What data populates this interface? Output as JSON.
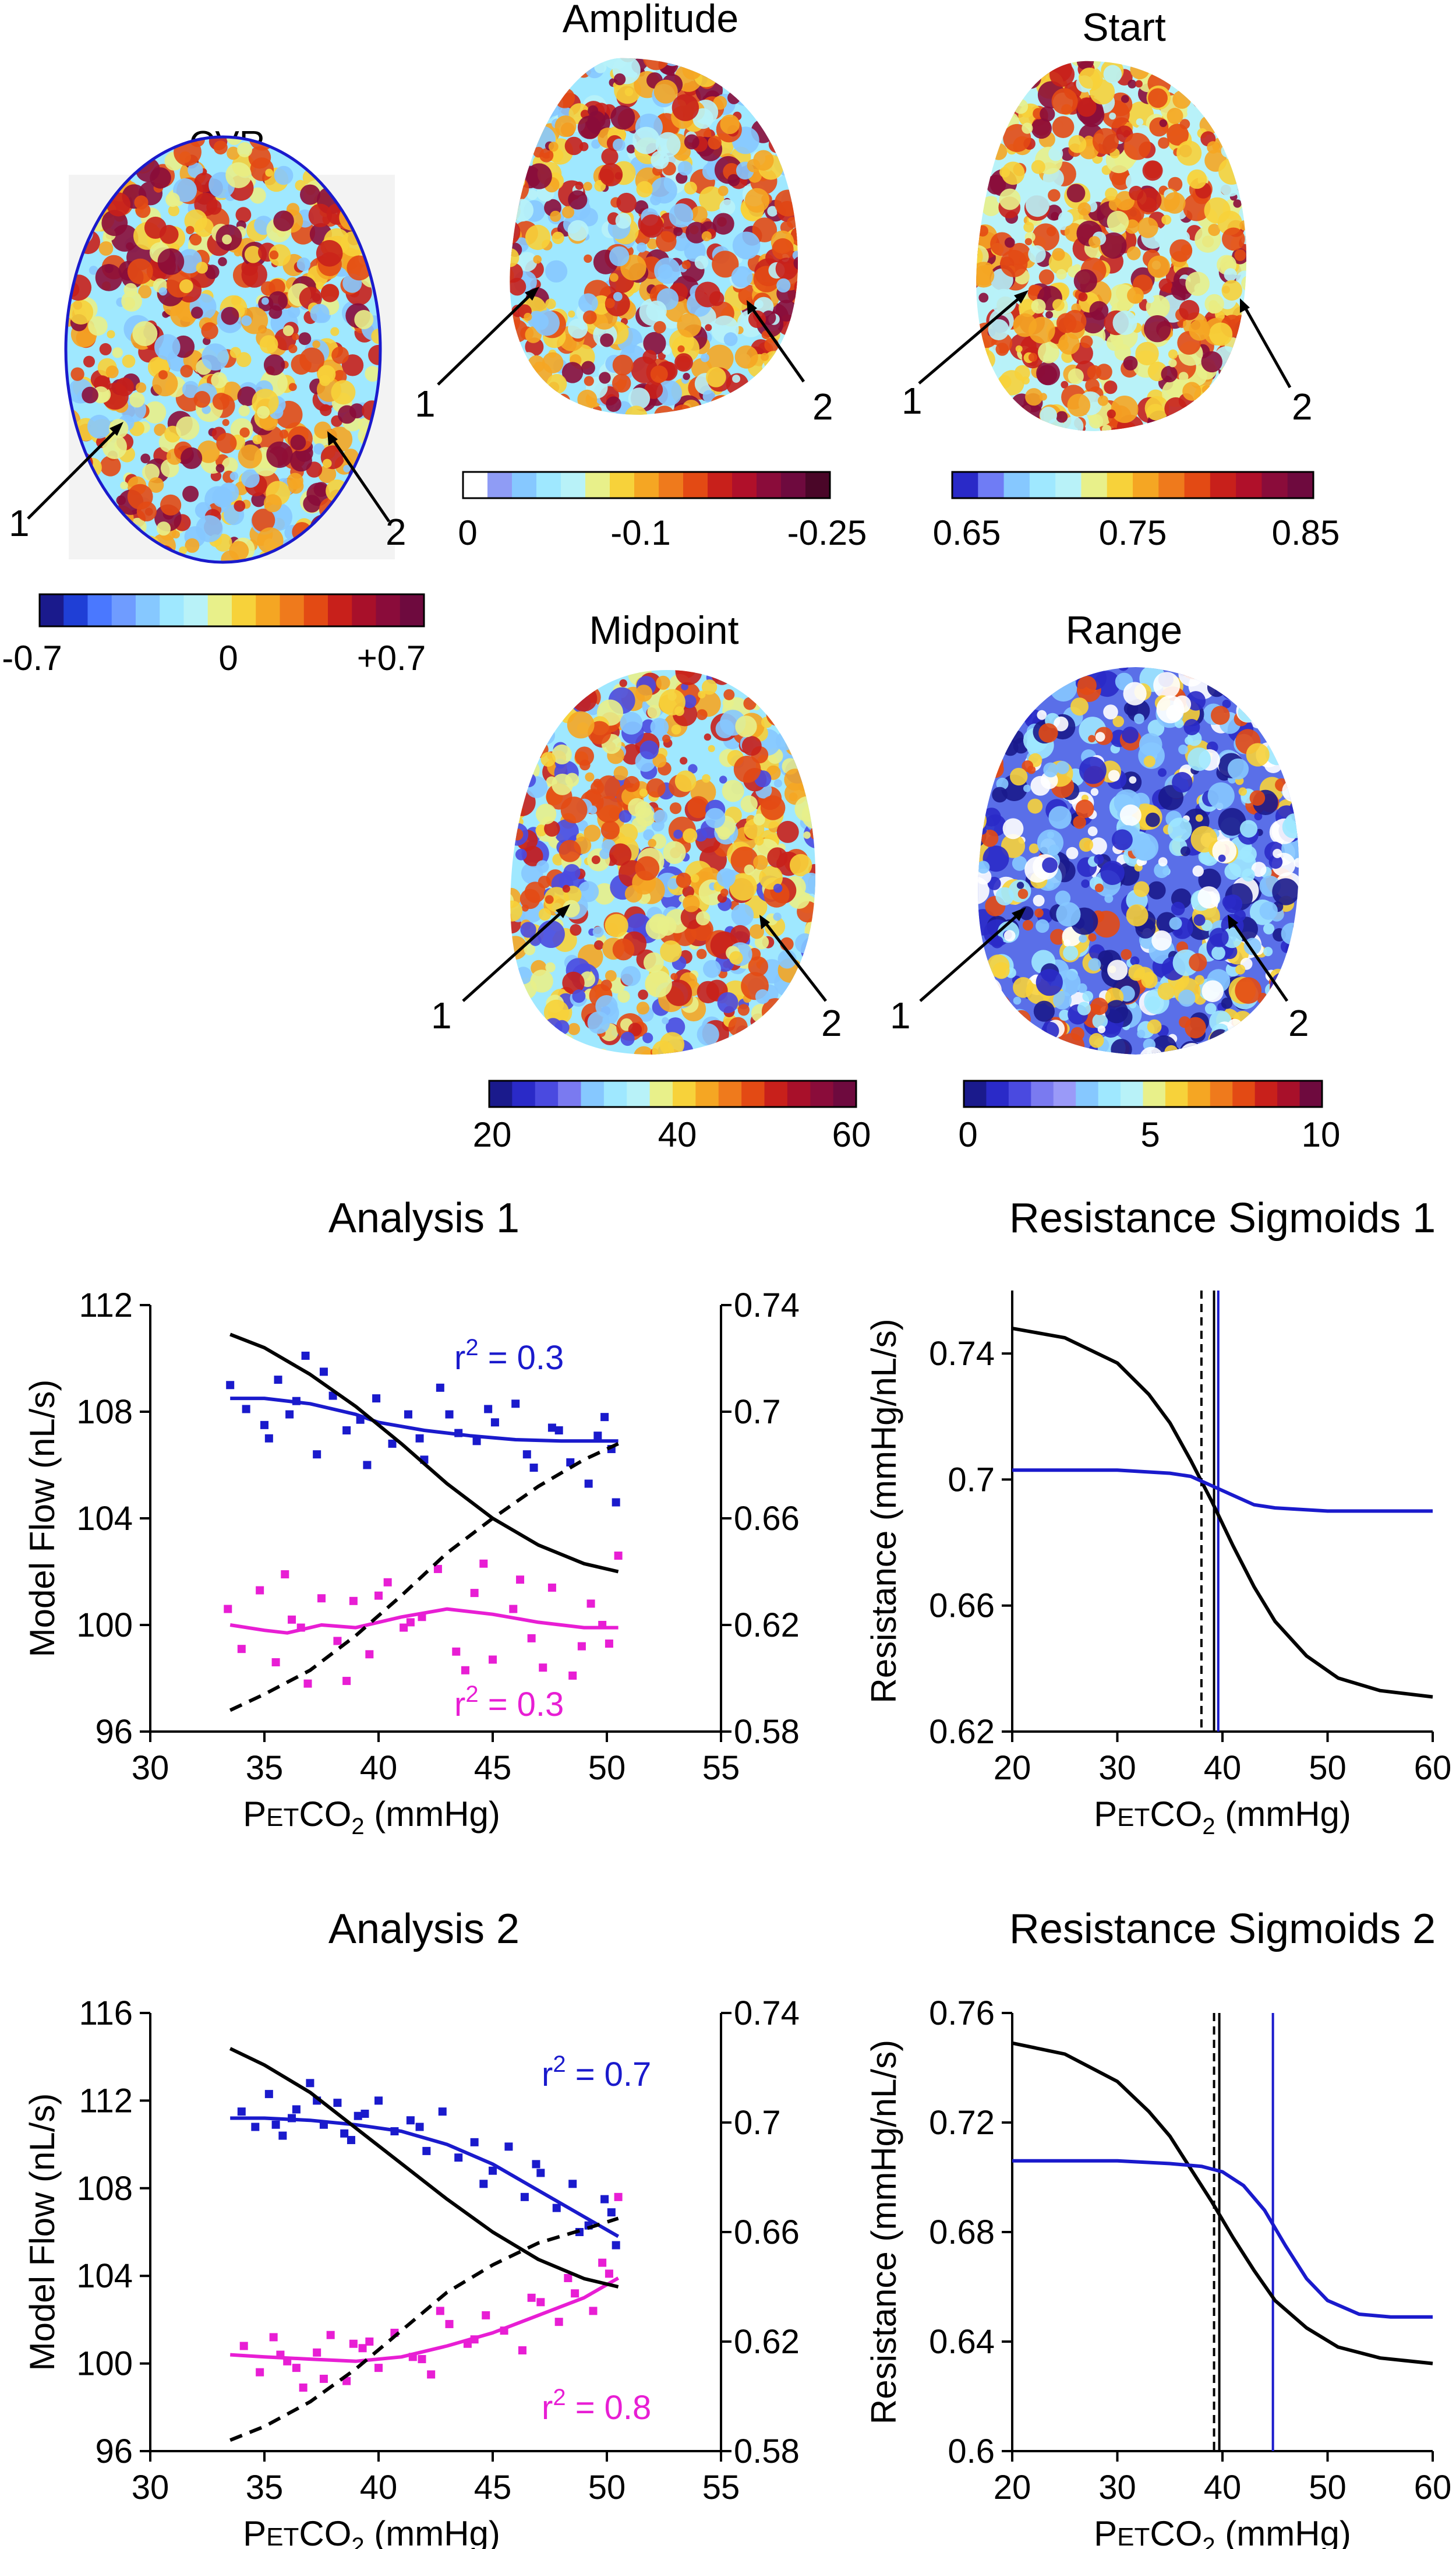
{
  "brain_maps": [
    {
      "id": "cvr",
      "title": "CVR",
      "pointers": [
        "1",
        "2"
      ],
      "colorbar": {
        "ticks": [
          "-0.7",
          "0",
          "+0.7"
        ],
        "colors": [
          "#1a1a8c",
          "#1f3fd6",
          "#4a78ff",
          "#6f9cff",
          "#86c8ff",
          "#9fe8ff",
          "#b8f2f8",
          "#e8f08a",
          "#f7d23a",
          "#f5a623",
          "#ef7a1c",
          "#e34a14",
          "#c8201b",
          "#a8102a",
          "#8a0c3a",
          "#6e0a3e"
        ]
      }
    },
    {
      "id": "amplitude",
      "title": "Amplitude",
      "pointers": [
        "1",
        "2"
      ],
      "colorbar": {
        "ticks": [
          "0",
          "-0.1",
          "-0.25"
        ],
        "colors": [
          "#ffffff",
          "#8f9cf5",
          "#86c8ff",
          "#9fe8ff",
          "#b8f2f8",
          "#e8f08a",
          "#f7d23a",
          "#f5a623",
          "#ef7a1c",
          "#e34a14",
          "#c8201b",
          "#b0102a",
          "#8a0c3a",
          "#6e0a3e",
          "#4a0628"
        ]
      }
    },
    {
      "id": "start",
      "title": "Start",
      "pointers": [
        "1",
        "2"
      ],
      "colorbar": {
        "ticks": [
          "0.65",
          "0.75",
          "0.85"
        ],
        "colors": [
          "#2a2ac8",
          "#6f7cf5",
          "#86c8ff",
          "#9fe8ff",
          "#b8f2f8",
          "#e8f08a",
          "#f7d23a",
          "#f5a623",
          "#ef7a1c",
          "#e34a14",
          "#c8201b",
          "#b0102a",
          "#8a0c3a",
          "#6e0a3e"
        ]
      }
    },
    {
      "id": "midpoint",
      "title": "Midpoint",
      "pointers": [
        "1",
        "2"
      ],
      "colorbar": {
        "ticks": [
          "20",
          "40",
          "60"
        ],
        "colors": [
          "#1a1a8c",
          "#2a2ac8",
          "#4a4ae0",
          "#7a7af0",
          "#86c8ff",
          "#9fe8ff",
          "#b8f2f8",
          "#e8f08a",
          "#f7d23a",
          "#f5a623",
          "#ef7a1c",
          "#e34a14",
          "#c8201b",
          "#a8102a",
          "#8a0c3a",
          "#6e0a3e"
        ]
      }
    },
    {
      "id": "range",
      "title": "Range",
      "pointers": [
        "1",
        "2"
      ],
      "colorbar": {
        "ticks": [
          "0",
          "5",
          "10"
        ],
        "colors": [
          "#1a1a8c",
          "#2a2ac8",
          "#4a4ae0",
          "#7a7af0",
          "#9a9af8",
          "#86c8ff",
          "#9fe8ff",
          "#b8f2f8",
          "#e8f08a",
          "#f7d23a",
          "#f5a623",
          "#ef7a1c",
          "#e34a14",
          "#c8201b",
          "#a8102a",
          "#6e0a3e"
        ]
      }
    }
  ],
  "labels": {
    "xlabel_prefix": "P",
    "xlabel_sub": "ET",
    "xlabel_mid": "CO",
    "xlabel_sub2": "2",
    "xlabel_suffix": " (mmHg)",
    "ylabel_flow": "Model Flow (nL/s)",
    "ylabel_res": "Resistance (mmHg/nL/s)",
    "r2_prefix": "r",
    "r2_sup": "2"
  },
  "chart_data": [
    {
      "type": "scatter",
      "title": "Analysis 1",
      "xlim": [
        30,
        55
      ],
      "xticks": [
        "30",
        "35",
        "40",
        "45",
        "50",
        "55"
      ],
      "ylim": [
        96,
        112
      ],
      "yticks": [
        "96",
        "100",
        "104",
        "108",
        "112"
      ],
      "y2lim": [
        0.58,
        0.74
      ],
      "y2ticks": [
        "0.58",
        "0.62",
        "0.66",
        "0.7",
        "0.74"
      ],
      "series": [
        {
          "name": "blue scatter",
          "color": "#1a1acc",
          "x": [
            33.5,
            34.2,
            35.0,
            35.6,
            36.1,
            36.8,
            37.3,
            38.0,
            38.6,
            39.2,
            39.9,
            40.6,
            41.3,
            42.0,
            42.7,
            43.5,
            44.3,
            45.1,
            46.0,
            46.8,
            47.6,
            48.4,
            49.2,
            49.9,
            50.4,
            35.2,
            37.6,
            41.8,
            44.8,
            47.9,
            50.2,
            36.4,
            39.5,
            43.1,
            46.5,
            49.6
          ],
          "y": [
            109.0,
            108.1,
            107.5,
            109.2,
            107.9,
            110.1,
            106.4,
            108.6,
            107.3,
            107.7,
            108.5,
            106.8,
            107.9,
            106.2,
            108.9,
            107.2,
            106.9,
            107.6,
            108.3,
            105.9,
            107.4,
            106.1,
            105.3,
            107.8,
            104.6,
            107.0,
            109.5,
            107.0,
            108.1,
            107.3,
            106.6,
            108.4,
            106.0,
            107.9,
            106.4,
            107.1
          ]
        },
        {
          "name": "magenta scatter",
          "color": "#e81ed4",
          "x": [
            33.4,
            34.0,
            34.8,
            35.5,
            36.2,
            36.9,
            37.5,
            38.2,
            38.9,
            39.6,
            40.4,
            41.1,
            41.9,
            42.6,
            43.4,
            44.2,
            45.0,
            45.9,
            46.7,
            47.6,
            48.5,
            49.3,
            50.1,
            50.5,
            35.9,
            38.6,
            41.4,
            44.6,
            47.2,
            49.8,
            36.6,
            40.0,
            43.8,
            46.2,
            48.9
          ],
          "y": [
            100.6,
            99.1,
            101.3,
            98.6,
            100.2,
            97.8,
            101.0,
            99.4,
            100.9,
            98.9,
            101.6,
            99.9,
            100.3,
            102.1,
            99.0,
            101.2,
            98.7,
            100.6,
            99.5,
            101.4,
            98.1,
            100.8,
            99.3,
            102.6,
            101.9,
            97.9,
            100.1,
            102.3,
            98.4,
            100.0,
            99.9,
            101.1,
            98.3,
            101.7,
            99.2
          ]
        },
        {
          "name": "blue fit",
          "color": "#1a1acc",
          "r2": "0.3",
          "x": [
            33.5,
            35,
            37,
            39,
            40,
            42,
            44,
            46,
            48,
            50.5
          ],
          "y": [
            108.5,
            108.5,
            108.3,
            107.9,
            107.6,
            107.3,
            107.1,
            106.95,
            106.9,
            106.9
          ]
        },
        {
          "name": "magenta fit",
          "color": "#e81ed4",
          "r2": "0.3",
          "x": [
            33.5,
            35,
            36,
            37.5,
            39,
            41,
            43,
            45,
            47,
            49,
            50.5
          ],
          "y": [
            100.0,
            99.8,
            99.7,
            100.0,
            99.9,
            100.3,
            100.6,
            100.4,
            100.1,
            99.9,
            99.9
          ]
        },
        {
          "name": "resistance (right axis)",
          "color": "#000000",
          "axis": "right",
          "x": [
            33.5,
            35,
            37,
            39,
            41,
            43,
            45,
            47,
            49,
            50.5
          ],
          "y": [
            0.729,
            0.724,
            0.714,
            0.702,
            0.688,
            0.673,
            0.66,
            0.65,
            0.643,
            0.64
          ]
        },
        {
          "name": "resistance dashed (right axis)",
          "color": "#000000",
          "dashed": true,
          "axis": "right",
          "x": [
            33.5,
            35,
            37,
            39,
            41,
            43,
            45,
            47,
            49,
            50.5
          ],
          "y": [
            0.588,
            0.594,
            0.603,
            0.616,
            0.631,
            0.647,
            0.66,
            0.672,
            0.682,
            0.688
          ]
        }
      ]
    },
    {
      "type": "line",
      "title": "Resistance Sigmoids 1",
      "xlim": [
        20,
        60
      ],
      "xticks": [
        "20",
        "30",
        "40",
        "50",
        "60"
      ],
      "ylim": [
        0.62,
        0.76
      ],
      "yticks": [
        "0.62",
        "0.66",
        "0.7",
        "0.74"
      ],
      "vlines": [
        {
          "x": 38.0,
          "color": "#000000",
          "dashed": true
        },
        {
          "x": 39.2,
          "color": "#000000"
        },
        {
          "x": 39.6,
          "color": "#1a1acc"
        }
      ],
      "series": [
        {
          "name": "black sigmoid",
          "color": "#000000",
          "x": [
            20,
            25,
            30,
            33,
            35,
            37,
            39,
            41,
            43,
            45,
            48,
            51,
            55,
            60
          ],
          "y": [
            0.748,
            0.745,
            0.737,
            0.727,
            0.718,
            0.706,
            0.693,
            0.679,
            0.666,
            0.655,
            0.644,
            0.637,
            0.633,
            0.631
          ]
        },
        {
          "name": "blue sigmoid",
          "color": "#1a1acc",
          "x": [
            20,
            30,
            35,
            37,
            39,
            41,
            43,
            45,
            50,
            60
          ],
          "y": [
            0.703,
            0.703,
            0.702,
            0.701,
            0.698,
            0.695,
            0.692,
            0.691,
            0.69,
            0.69
          ]
        }
      ]
    },
    {
      "type": "scatter",
      "title": "Analysis 2",
      "xlim": [
        30,
        55
      ],
      "xticks": [
        "30",
        "35",
        "40",
        "45",
        "50",
        "55"
      ],
      "ylim": [
        96,
        116
      ],
      "yticks": [
        "96",
        "100",
        "104",
        "108",
        "112",
        "116"
      ],
      "y2lim": [
        0.58,
        0.74
      ],
      "y2ticks": [
        "0.58",
        "0.62",
        "0.66",
        "0.7",
        "0.74"
      ],
      "series": [
        {
          "name": "blue scatter",
          "color": "#1a1acc",
          "x": [
            34.0,
            34.6,
            35.2,
            35.8,
            36.4,
            37.0,
            37.6,
            38.2,
            38.8,
            39.4,
            40.0,
            40.7,
            41.4,
            42.1,
            42.8,
            43.5,
            44.2,
            45.0,
            45.7,
            46.4,
            47.1,
            47.8,
            48.5,
            49.2,
            49.9,
            50.4,
            35.5,
            37.3,
            39.1,
            41.8,
            44.6,
            46.9,
            48.8,
            50.2,
            36.2,
            38.5
          ],
          "y": [
            111.5,
            110.8,
            112.3,
            110.4,
            111.6,
            112.8,
            110.9,
            111.9,
            110.2,
            111.4,
            112.0,
            110.6,
            111.1,
            109.7,
            111.5,
            109.4,
            110.1,
            108.8,
            109.9,
            107.6,
            108.7,
            107.1,
            108.2,
            106.3,
            107.5,
            105.4,
            110.9,
            112.0,
            111.3,
            110.8,
            108.2,
            109.1,
            106.0,
            106.9,
            111.2,
            110.5
          ]
        },
        {
          "name": "magenta scatter",
          "color": "#e81ed4",
          "x": [
            34.1,
            34.8,
            35.4,
            36.0,
            36.7,
            37.3,
            37.9,
            38.6,
            39.3,
            40.0,
            40.7,
            41.5,
            42.3,
            43.1,
            43.9,
            44.7,
            45.5,
            46.3,
            47.1,
            47.9,
            48.6,
            49.4,
            50.1,
            50.5,
            35.7,
            37.6,
            39.6,
            41.9,
            44.2,
            46.7,
            48.3,
            49.8,
            36.4,
            38.9,
            42.7
          ],
          "y": [
            100.8,
            99.6,
            101.2,
            100.1,
            98.9,
            100.5,
            101.3,
            99.2,
            100.7,
            99.8,
            101.4,
            100.3,
            99.5,
            101.8,
            100.9,
            102.2,
            101.5,
            100.6,
            102.8,
            101.9,
            103.2,
            102.4,
            104.1,
            107.6,
            100.4,
            99.3,
            101.0,
            100.2,
            101.1,
            103.0,
            103.9,
            104.6,
            99.8,
            100.9,
            102.4
          ]
        },
        {
          "name": "blue fit",
          "color": "#1a1acc",
          "r2": "0.7",
          "x": [
            33.5,
            35,
            37,
            39,
            41,
            43,
            45,
            47,
            49,
            50.5
          ],
          "y": [
            111.2,
            111.2,
            111.1,
            110.9,
            110.6,
            110.0,
            109.1,
            107.9,
            106.7,
            105.8
          ]
        },
        {
          "name": "magenta fit",
          "color": "#e81ed4",
          "r2": "0.8",
          "x": [
            33.5,
            35,
            37,
            39,
            41,
            43,
            45,
            47,
            49,
            50.5
          ],
          "y": [
            100.4,
            100.3,
            100.2,
            100.1,
            100.3,
            100.8,
            101.4,
            102.2,
            103.0,
            103.9
          ]
        },
        {
          "name": "resistance (right axis)",
          "color": "#000000",
          "axis": "right",
          "x": [
            33.5,
            35,
            37,
            39,
            41,
            43,
            45,
            47,
            49,
            50.5
          ],
          "y": [
            0.727,
            0.721,
            0.711,
            0.698,
            0.685,
            0.672,
            0.66,
            0.65,
            0.643,
            0.64
          ]
        },
        {
          "name": "resistance dashed (right axis)",
          "color": "#000000",
          "dashed": true,
          "axis": "right",
          "x": [
            33.5,
            35,
            37,
            39,
            41,
            43,
            45,
            47,
            49,
            50.5
          ],
          "y": [
            0.584,
            0.589,
            0.598,
            0.61,
            0.624,
            0.638,
            0.648,
            0.656,
            0.661,
            0.665
          ]
        }
      ]
    },
    {
      "type": "line",
      "title": "Resistance Sigmoids 2",
      "xlim": [
        20,
        60
      ],
      "xticks": [
        "20",
        "30",
        "40",
        "50",
        "60"
      ],
      "ylim": [
        0.6,
        0.76
      ],
      "yticks": [
        "0.6",
        "0.64",
        "0.68",
        "0.72",
        "0.76"
      ],
      "vlines": [
        {
          "x": 39.2,
          "color": "#000000",
          "dashed": true
        },
        {
          "x": 39.7,
          "color": "#000000"
        },
        {
          "x": 44.8,
          "color": "#1a1acc"
        }
      ],
      "series": [
        {
          "name": "black sigmoid",
          "color": "#000000",
          "x": [
            20,
            25,
            30,
            33,
            35,
            37,
            39,
            41,
            43,
            45,
            48,
            51,
            55,
            60
          ],
          "y": [
            0.749,
            0.745,
            0.735,
            0.724,
            0.715,
            0.703,
            0.691,
            0.678,
            0.666,
            0.655,
            0.645,
            0.638,
            0.634,
            0.632
          ]
        },
        {
          "name": "blue sigmoid",
          "color": "#1a1acc",
          "x": [
            20,
            30,
            35,
            38,
            40,
            42,
            44,
            46,
            48,
            50,
            53,
            56,
            60
          ],
          "y": [
            0.706,
            0.706,
            0.705,
            0.704,
            0.702,
            0.697,
            0.688,
            0.675,
            0.663,
            0.655,
            0.65,
            0.649,
            0.649
          ]
        }
      ]
    }
  ]
}
